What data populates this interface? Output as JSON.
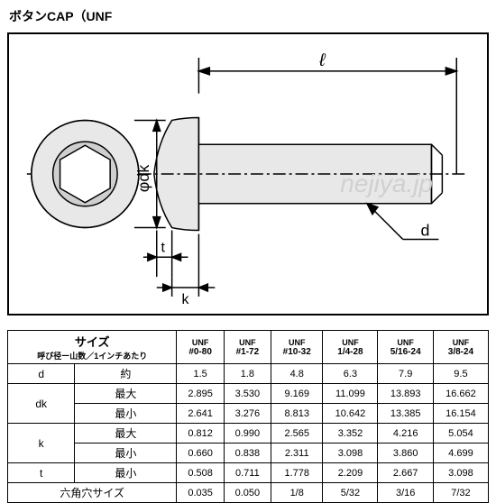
{
  "title": "ボタンCAP（UNF",
  "watermark": "nejiya.jp",
  "dim_labels": {
    "length": "ℓ",
    "phi_dk": "φdk",
    "t": "t",
    "k": "k",
    "d": "d"
  },
  "figure": {
    "stroke": "#000000",
    "fill_shade": "#eeeeee",
    "background": "#ffffff",
    "stroke_width": 1.5
  },
  "columns": [
    {
      "top": "UNF",
      "bot": "#0-80"
    },
    {
      "top": "UNF",
      "bot": "#1-72"
    },
    {
      "top": "UNF",
      "bot": "#10-32"
    },
    {
      "top": "UNF",
      "bot": "1/4-28"
    },
    {
      "top": "UNF",
      "bot": "5/16-24"
    },
    {
      "top": "UNF",
      "bot": "3/8-24"
    }
  ],
  "size_header": {
    "main": "サイズ",
    "sub": "呼び径ー山数／1インチあたり"
  },
  "rows": [
    {
      "label": "d",
      "sub": "約",
      "vals": [
        "1.5",
        "1.8",
        "4.8",
        "6.3",
        "7.9",
        "9.5"
      ]
    },
    {
      "label": "dk",
      "sub": "最大",
      "vals": [
        "2.895",
        "3.530",
        "9.169",
        "11.099",
        "13.893",
        "16.662"
      ]
    },
    {
      "label": "",
      "sub": "最小",
      "vals": [
        "2.641",
        "3.276",
        "8.813",
        "10.642",
        "13.385",
        "16.154"
      ]
    },
    {
      "label": "k",
      "sub": "最大",
      "vals": [
        "0.812",
        "0.990",
        "2.565",
        "3.352",
        "4.216",
        "5.054"
      ]
    },
    {
      "label": "",
      "sub": "最小",
      "vals": [
        "0.660",
        "0.838",
        "2.311",
        "3.098",
        "3.860",
        "4.699"
      ]
    },
    {
      "label": "t",
      "sub": "最小",
      "vals": [
        "0.508",
        "0.711",
        "1.778",
        "2.209",
        "2.667",
        "3.098"
      ]
    },
    {
      "label": "六角穴サイズ",
      "sub": "",
      "vals": [
        "0.035",
        "0.050",
        "1/8",
        "5/32",
        "3/16",
        "7/32"
      ]
    }
  ]
}
